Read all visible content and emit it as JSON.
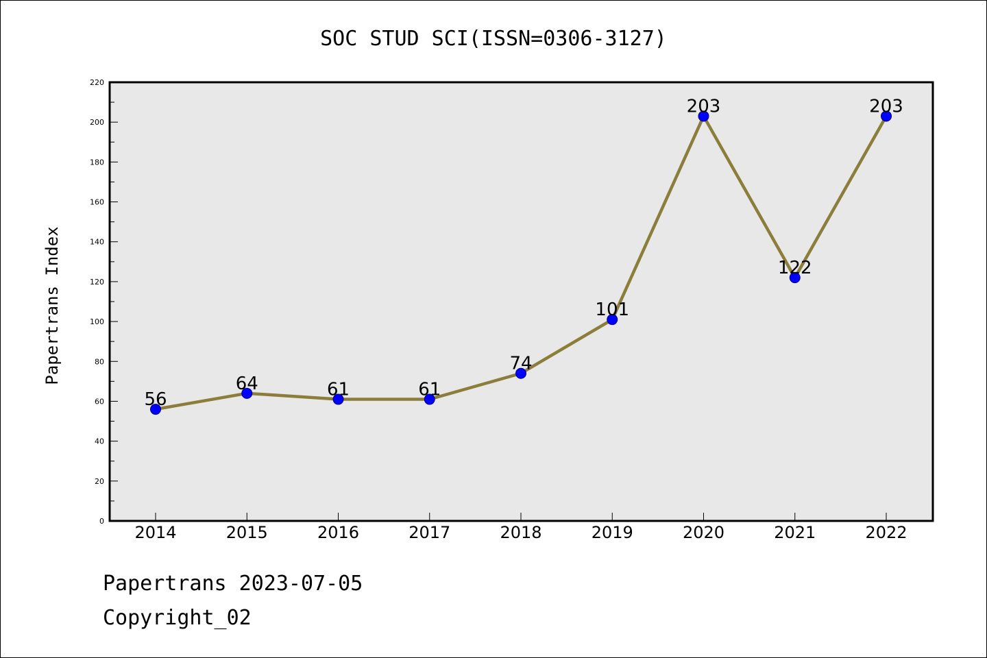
{
  "colors": {
    "line": "#8b7d3a",
    "marker_fill": "#0000ff",
    "marker_edge": "#000080",
    "plot_bg": "#e8e8e8"
  },
  "footer": {
    "line1": "Papertrans 2023-07-05",
    "line2": "Copyright_02"
  },
  "chart_data": {
    "type": "line",
    "title": "SOC STUD SCI(ISSN=0306-3127)",
    "xlabel": "",
    "ylabel": "Papertrans Index",
    "x": [
      "2014",
      "2015",
      "2016",
      "2017",
      "2018",
      "2019",
      "2020",
      "2021",
      "2022"
    ],
    "series": [
      {
        "values": [
          56,
          64,
          61,
          61,
          74,
          101,
          203,
          122,
          203
        ]
      }
    ],
    "data_labels": [
      "56",
      "64",
      "61",
      "61",
      "74",
      "101",
      "203",
      "122",
      "203"
    ],
    "ylim": [
      0,
      220
    ],
    "yticks": [
      "0",
      "20",
      "40",
      "60",
      "80",
      "100",
      "120",
      "140",
      "160",
      "180",
      "200",
      "220"
    ],
    "grid": false,
    "legend": "none"
  }
}
